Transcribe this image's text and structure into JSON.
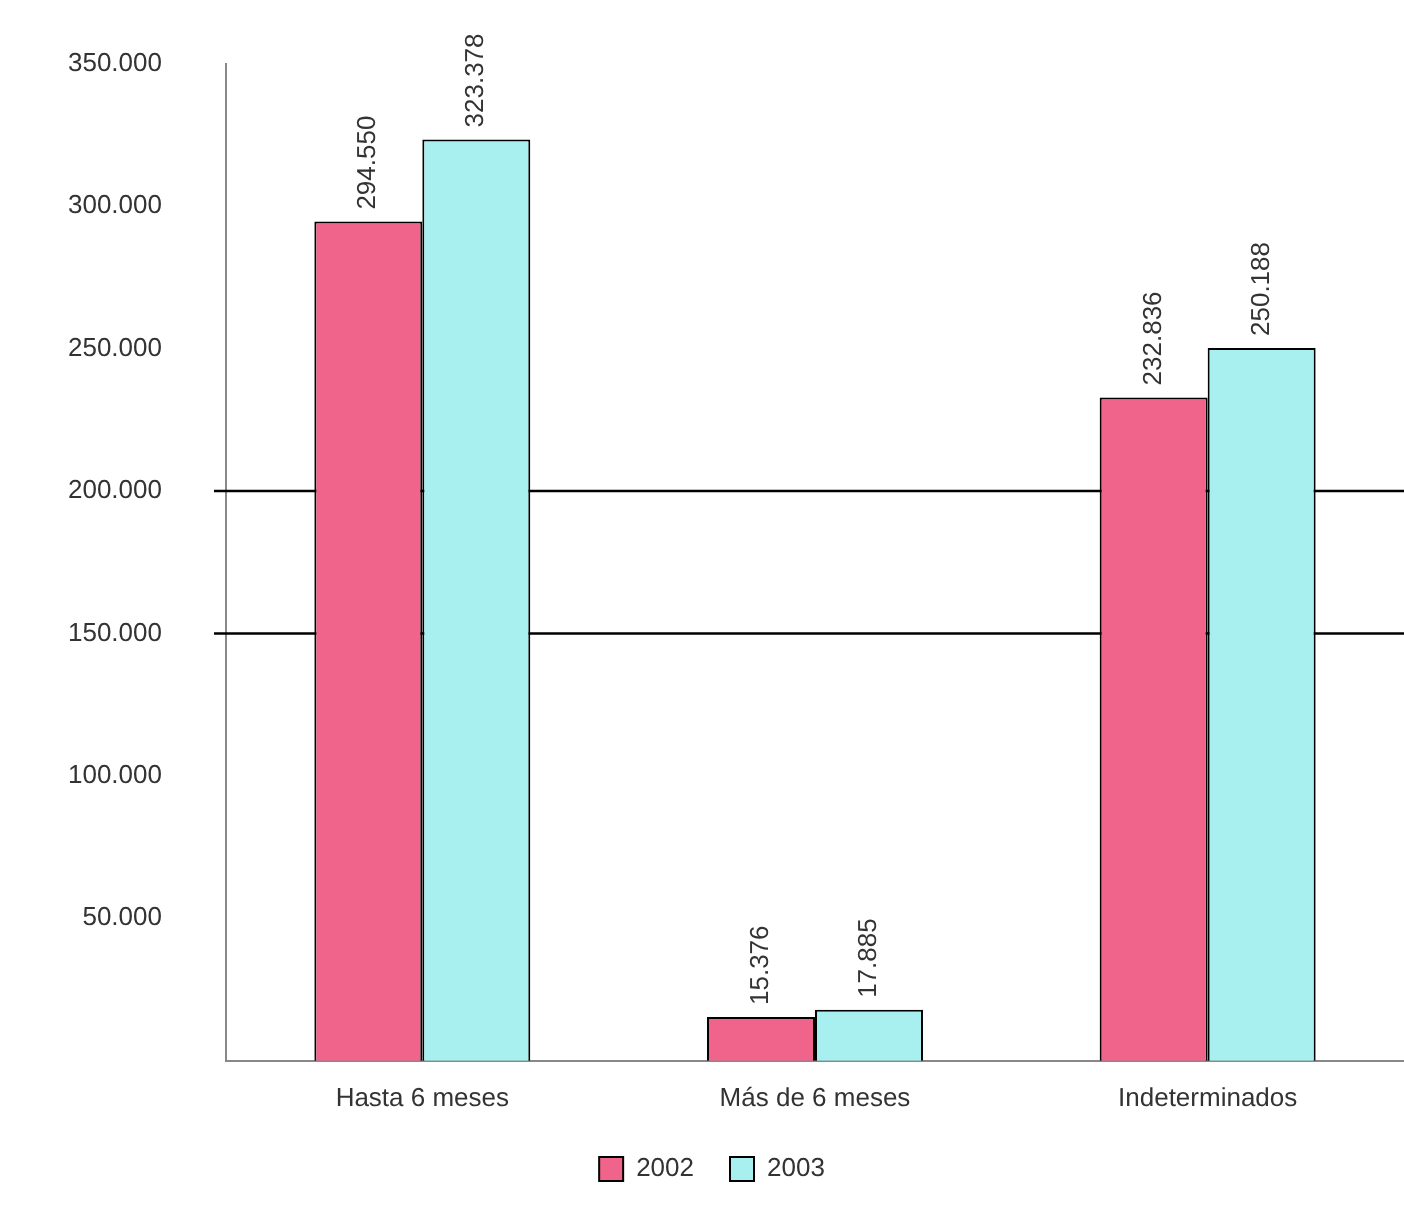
{
  "chart_data": {
    "type": "bar",
    "categories": [
      "Hasta 6 meses",
      "Más de 6 meses",
      "Indeterminados"
    ],
    "series": [
      {
        "name": "2002",
        "color": "#f0648c",
        "values": [
          294550,
          15376,
          232836
        ],
        "value_labels": [
          "294.550",
          "15.376",
          "232.836"
        ]
      },
      {
        "name": "2003",
        "color": "#a8f0f0",
        "values": [
          323378,
          17885,
          250188
        ],
        "value_labels": [
          "323.378",
          "17.885",
          "250.188"
        ]
      }
    ],
    "ylim": [
      0,
      350000
    ],
    "yticks": [
      {
        "value": 50000,
        "label": "50.000"
      },
      {
        "value": 100000,
        "label": "100.000"
      },
      {
        "value": 150000,
        "label": "150.000"
      },
      {
        "value": 200000,
        "label": "200.000"
      },
      {
        "value": 250000,
        "label": "250.000"
      },
      {
        "value": 300000,
        "label": "300.000"
      },
      {
        "value": 350000,
        "label": "350.000"
      }
    ],
    "ref_lines": [
      {
        "axis": "y",
        "value": 150000,
        "color": "#000000"
      },
      {
        "axis": "y",
        "value": 200000,
        "color": "#000000"
      }
    ],
    "legend": "bottom"
  }
}
